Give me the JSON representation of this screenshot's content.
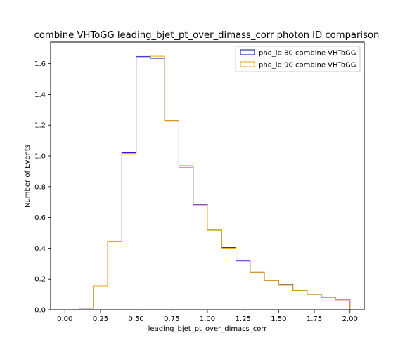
{
  "chart_data": {
    "type": "step-histogram",
    "title": "combine VHToGG leading_bjet_pt_over_dimass_corr photon ID comparison",
    "xlabel": "leading_bjet_pt_over_dimass_corr",
    "ylabel": "Number of Events",
    "xlim": [
      -0.1,
      2.1
    ],
    "ylim": [
      0.0,
      1.74
    ],
    "x_ticks": [
      0.0,
      0.25,
      0.5,
      0.75,
      1.0,
      1.25,
      1.5,
      1.75,
      2.0
    ],
    "x_tick_labels": [
      "0.00",
      "0.25",
      "0.50",
      "0.75",
      "1.00",
      "1.25",
      "1.50",
      "1.75",
      "2.00"
    ],
    "y_ticks": [
      0.0,
      0.2,
      0.4,
      0.6,
      0.8,
      1.0,
      1.2,
      1.4,
      1.6
    ],
    "y_tick_labels": [
      "0.0",
      "0.2",
      "0.4",
      "0.6",
      "0.8",
      "1.0",
      "1.2",
      "1.4",
      "1.6"
    ],
    "bin_edges": [
      0.0,
      0.1,
      0.2,
      0.3,
      0.4,
      0.5,
      0.6,
      0.7,
      0.8,
      0.9,
      1.0,
      1.1,
      1.2,
      1.3,
      1.4,
      1.5,
      1.6,
      1.7,
      1.8,
      1.9,
      2.0
    ],
    "legend_position": "top-right",
    "grid": false,
    "series": [
      {
        "name": "pho_id 80 combine VHToGG",
        "color": "#0000cc",
        "values": [
          0.0,
          0.01,
          0.155,
          0.445,
          1.02,
          1.645,
          1.635,
          1.23,
          0.935,
          0.685,
          0.52,
          0.405,
          0.32,
          0.245,
          0.19,
          0.165,
          0.125,
          0.1,
          0.08,
          0.065
        ]
      },
      {
        "name": "pho_id 90 combine VHToGG",
        "color": "#f0a30a",
        "values": [
          0.0,
          0.01,
          0.155,
          0.445,
          1.015,
          1.655,
          1.648,
          1.23,
          0.925,
          0.68,
          0.515,
          0.4,
          0.315,
          0.245,
          0.19,
          0.16,
          0.125,
          0.1,
          0.08,
          0.065
        ]
      }
    ]
  }
}
